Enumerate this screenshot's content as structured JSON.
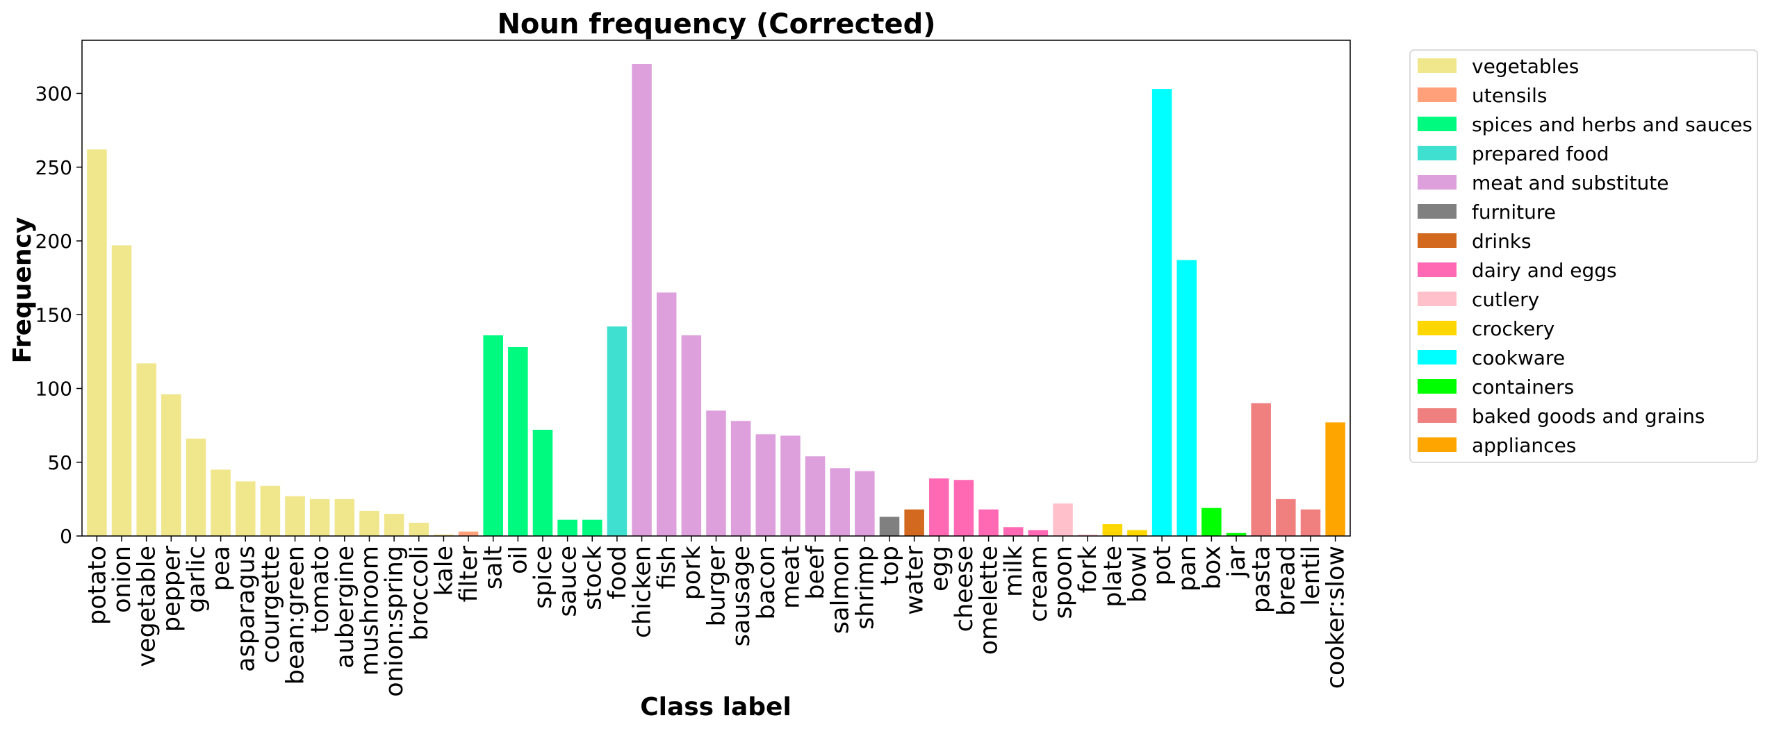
{
  "chart_data": {
    "type": "bar",
    "title": "Noun frequency (Corrected)",
    "xlabel": "Class label",
    "ylabel": "Frequency",
    "ylim": [
      0,
      336
    ],
    "yticks": [
      0,
      50,
      100,
      150,
      200,
      250,
      300
    ],
    "grid": false,
    "legend_position": "outside-right",
    "groups": [
      {
        "name": "vegetables",
        "color": "#F0E68C"
      },
      {
        "name": "utensils",
        "color": "#FFA07A"
      },
      {
        "name": "spices and herbs and sauces",
        "color": "#00FA7F"
      },
      {
        "name": "prepared food",
        "color": "#40E0D0"
      },
      {
        "name": "meat and substitute",
        "color": "#DDA0DD"
      },
      {
        "name": "furniture",
        "color": "#808080"
      },
      {
        "name": "drinks",
        "color": "#D2691E"
      },
      {
        "name": "dairy and eggs",
        "color": "#FF69B4"
      },
      {
        "name": "cutlery",
        "color": "#FFC0CB"
      },
      {
        "name": "crockery",
        "color": "#FFD700"
      },
      {
        "name": "cookware",
        "color": "#00FFFF"
      },
      {
        "name": "containers",
        "color": "#00FF00"
      },
      {
        "name": "baked goods and grains",
        "color": "#F08080"
      },
      {
        "name": "appliances",
        "color": "#FFA500"
      }
    ],
    "categories": [
      "potato",
      "onion",
      "vegetable",
      "pepper",
      "garlic",
      "pea",
      "asparagus",
      "courgette",
      "bean:green",
      "tomato",
      "aubergine",
      "mushroom",
      "onion:spring",
      "broccoli",
      "kale",
      "filter",
      "salt",
      "oil",
      "spice",
      "sauce",
      "stock",
      "food",
      "chicken",
      "fish",
      "pork",
      "burger",
      "sausage",
      "bacon",
      "meat",
      "beef",
      "salmon",
      "shrimp",
      "top",
      "water",
      "egg",
      "cheese",
      "omelette",
      "milk",
      "cream",
      "spoon",
      "fork",
      "plate",
      "bowl",
      "pot",
      "pan",
      "box",
      "jar",
      "pasta",
      "bread",
      "lentil",
      "cooker:slow"
    ],
    "values": [
      262,
      197,
      117,
      96,
      66,
      45,
      37,
      34,
      27,
      25,
      25,
      17,
      15,
      9,
      1,
      3,
      136,
      128,
      72,
      11,
      11,
      142,
      320,
      165,
      136,
      85,
      78,
      69,
      68,
      54,
      46,
      44,
      13,
      18,
      39,
      38,
      18,
      6,
      4,
      22,
      1,
      8,
      4,
      303,
      187,
      19,
      2,
      90,
      25,
      18,
      77
    ],
    "category_group": [
      "vegetables",
      "vegetables",
      "vegetables",
      "vegetables",
      "vegetables",
      "vegetables",
      "vegetables",
      "vegetables",
      "vegetables",
      "vegetables",
      "vegetables",
      "vegetables",
      "vegetables",
      "vegetables",
      "vegetables",
      "utensils",
      "spices and herbs and sauces",
      "spices and herbs and sauces",
      "spices and herbs and sauces",
      "spices and herbs and sauces",
      "spices and herbs and sauces",
      "prepared food",
      "meat and substitute",
      "meat and substitute",
      "meat and substitute",
      "meat and substitute",
      "meat and substitute",
      "meat and substitute",
      "meat and substitute",
      "meat and substitute",
      "meat and substitute",
      "meat and substitute",
      "furniture",
      "drinks",
      "dairy and eggs",
      "dairy and eggs",
      "dairy and eggs",
      "dairy and eggs",
      "dairy and eggs",
      "cutlery",
      "cutlery",
      "crockery",
      "crockery",
      "cookware",
      "cookware",
      "containers",
      "containers",
      "baked goods and grains",
      "baked goods and grains",
      "baked goods and grains",
      "appliances"
    ]
  }
}
